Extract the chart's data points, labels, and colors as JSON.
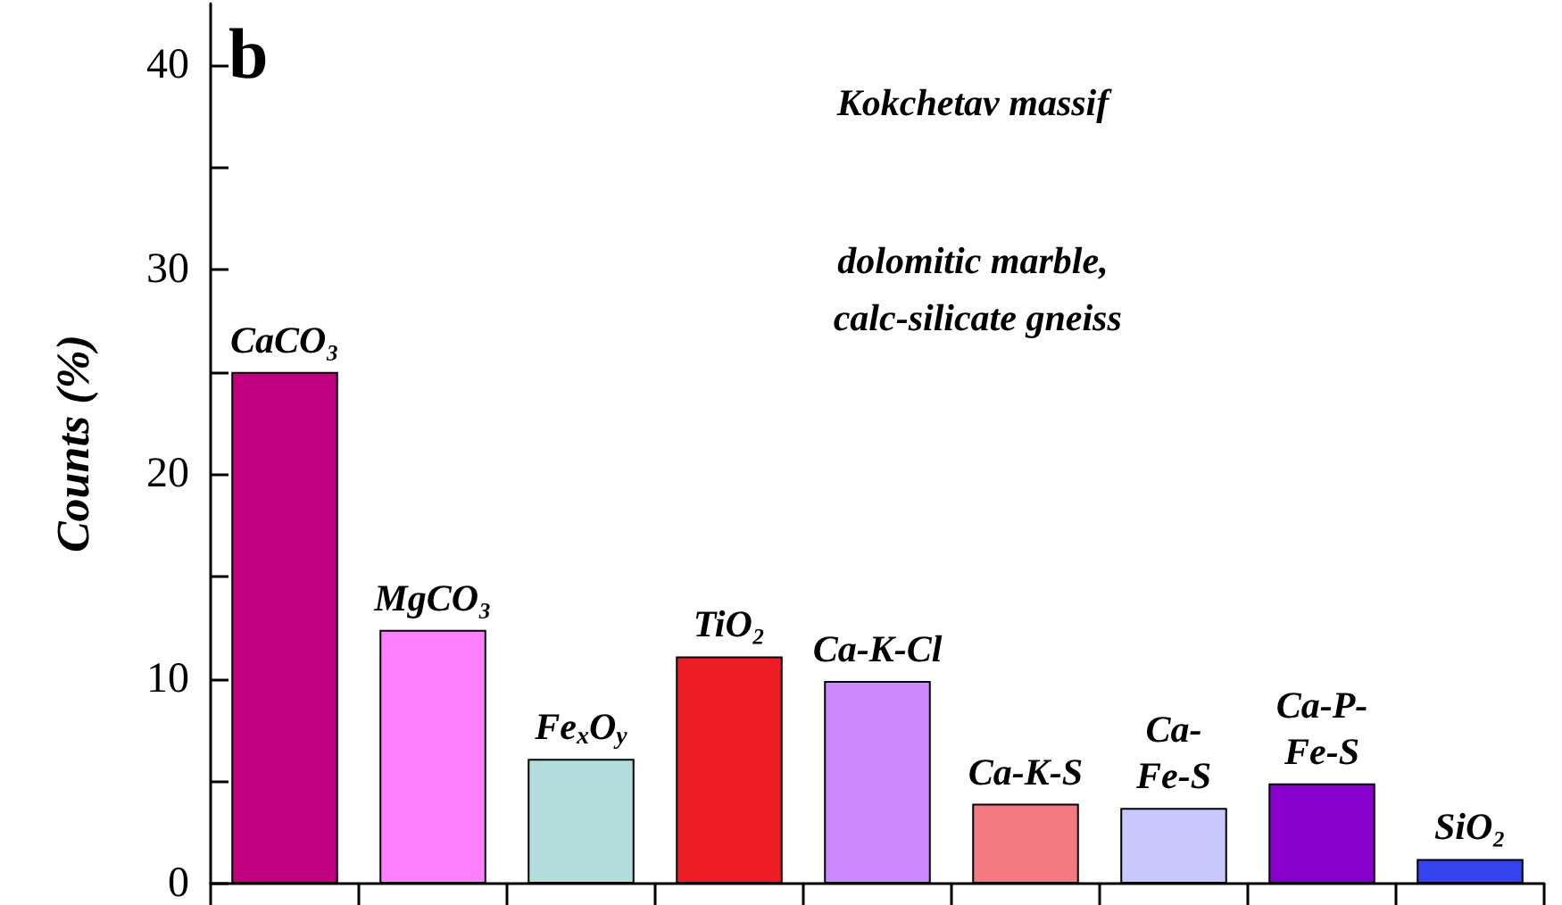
{
  "chart_data": {
    "type": "bar",
    "title": "Kokchetav massif",
    "subtitle": "dolomitic marble,\n calc-silicate gneiss",
    "ylabel": "Counts (%)",
    "annotations": [
      "b"
    ],
    "categories": [
      "CaCO₃",
      "MgCO₃",
      "Fe$_{x}$O$_{y}$",
      "TiO₂",
      "Ca-K-Cl",
      "Ca-K-S",
      "Ca-\nFe-S",
      "Ca-P-\nFe-S",
      "SiO₂"
    ],
    "values": [
      25,
      12.4,
      6.1,
      11.1,
      9.9,
      3.9,
      3.7,
      4.9,
      1.2
    ],
    "colors": [
      "#c0007f",
      "#ff80ff",
      "#b3dddd",
      "#ee1c24",
      "#cc88ff",
      "#f47a82",
      "#c8c8ff",
      "#8800cc",
      "#3344ee"
    ],
    "ylim": [
      0,
      43
    ],
    "yticks": [
      0,
      {
        "value": 5,
        "label": null
      },
      10,
      {
        "value": 15,
        "label": null
      },
      20,
      {
        "value": 25,
        "label": null
      },
      30,
      {
        "value": 35,
        "label": null
      },
      40
    ],
    "tick_labels": "y",
    "grid": false
  }
}
